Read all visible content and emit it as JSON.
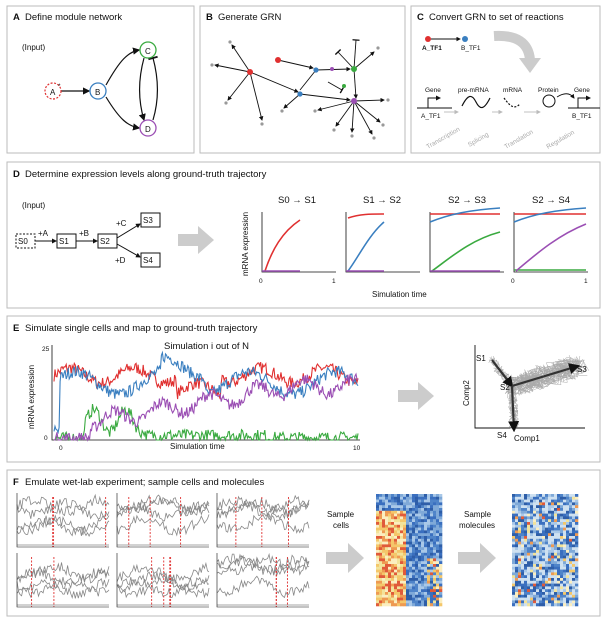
{
  "panels": {
    "A": {
      "letter": "A",
      "title": "Define module network",
      "input": "(Input)",
      "nodes": [
        "A",
        "B",
        "C",
        "D"
      ]
    },
    "B": {
      "letter": "B",
      "title": "Generate GRN"
    },
    "C": {
      "letter": "C",
      "title": "Convert GRN to set of reactions",
      "tf_a": "A_TF1",
      "tf_b": "B_TF1",
      "gene1": "Gene",
      "premrna": "pre-mRNA",
      "mrna": "mRNA",
      "protein": "Protein",
      "gene2": "Gene",
      "gene1_label": "A_TF1",
      "gene2_label": "B_TF1",
      "steps": [
        "Transcription",
        "Splicing",
        "Translation",
        "Regulation"
      ]
    },
    "D": {
      "letter": "D",
      "title": "Determine expression levels along ground-truth trajectory",
      "input": "(Input)",
      "states": [
        "S0",
        "S1",
        "S2",
        "S3",
        "S4"
      ],
      "edges": [
        "+A",
        "+B",
        "+C",
        "+D"
      ],
      "transitions": [
        "S0 → S1",
        "S1 → S2",
        "S2 → S3",
        "S2 → S4"
      ],
      "ylabel": "mRNA expression",
      "xlabel": "Simulation time",
      "tick0": "0",
      "tick1": "1"
    },
    "E": {
      "letter": "E",
      "title": "Simulate single cells and map to ground-truth trajectory",
      "subtitle": "Simulation i out of N",
      "ylabel": "mRNA expression",
      "xlabel": "Simulation time",
      "yticks": [
        "0",
        "25"
      ],
      "xticks": [
        "0",
        "10"
      ],
      "pca": {
        "xlabel": "Comp1",
        "ylabel": "Comp2",
        "labels": [
          "S1",
          "S2",
          "S3",
          "S4"
        ]
      }
    },
    "F": {
      "letter": "F",
      "title": "Emulate wet-lab experiment; sample cells and molecules",
      "step1": [
        "Sample",
        "cells"
      ],
      "step2": [
        "Sample",
        "molecules"
      ]
    }
  },
  "colors": {
    "red": "#e03030",
    "blue": "#3a7fc0",
    "green": "#3aaa40",
    "purple": "#9b4fb4",
    "arrow": "#cccccc",
    "panel_border": "#bbbbbb"
  }
}
